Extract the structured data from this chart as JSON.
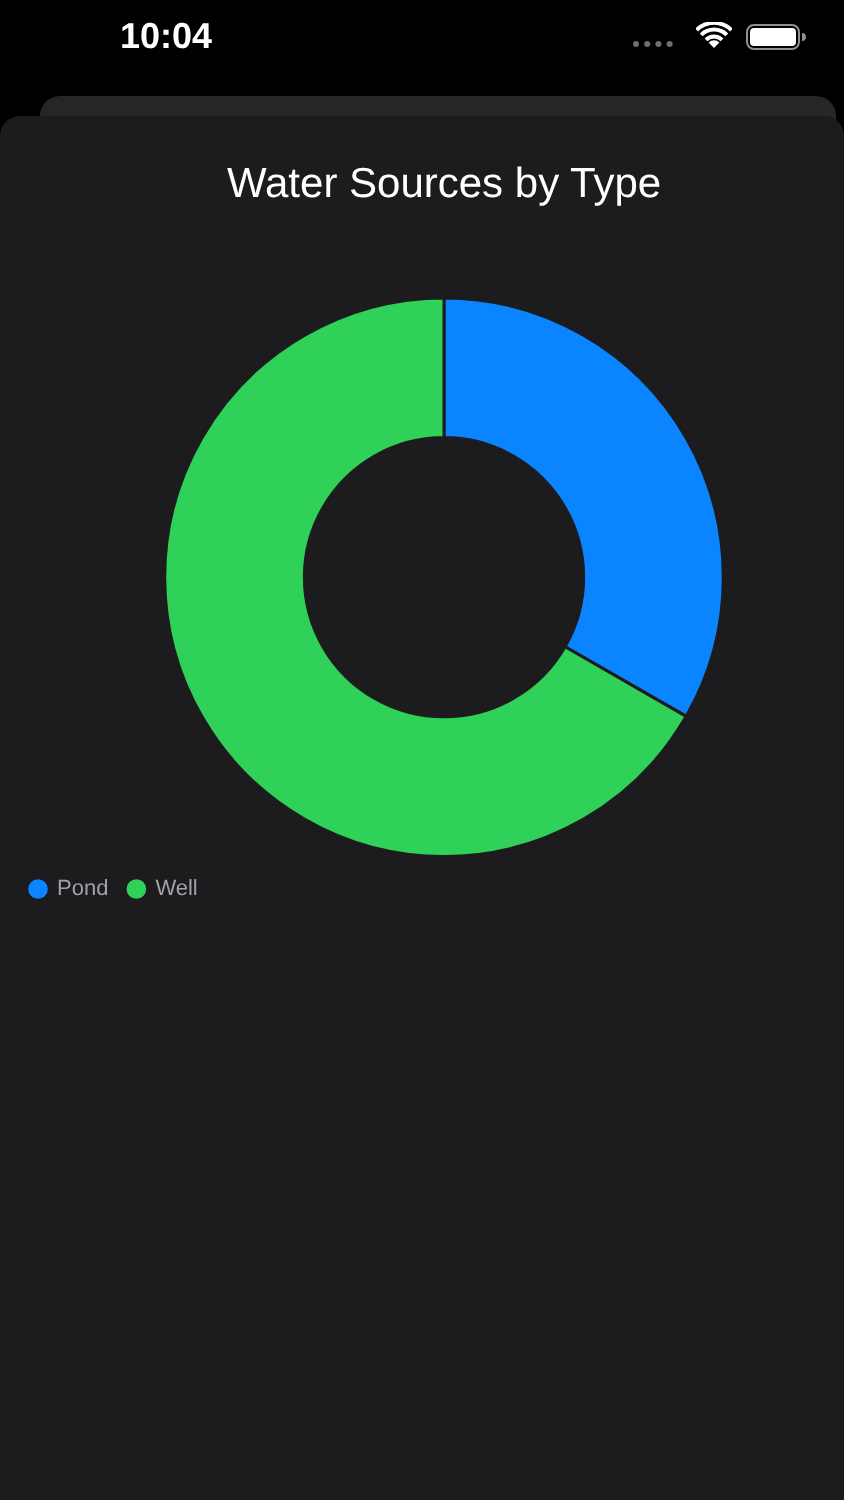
{
  "chart_data": {
    "type": "donut",
    "title": "Water Sources by Type",
    "categories": [
      "Pond",
      "Well"
    ],
    "values": [
      33.3,
      66.7
    ],
    "colors": [
      "#0a84ff",
      "#30d158"
    ],
    "legend": "bottom left",
    "annotations": [
      "10:04"
    ]
  }
}
